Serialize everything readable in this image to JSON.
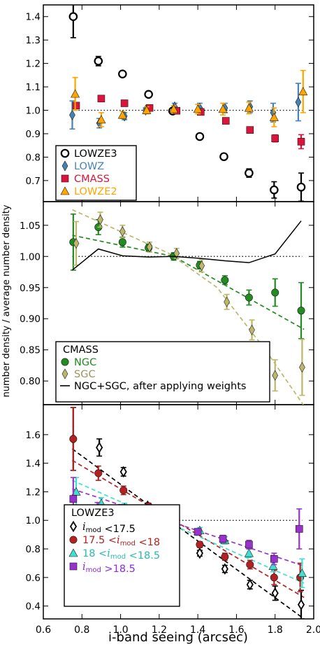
{
  "figure": {
    "ylabel": "number density / average number density",
    "xlabel": "i-band seeing (arcsec)"
  },
  "chart_data": [
    {
      "type": "scatter",
      "panel": "top",
      "xlim": [
        0.6,
        2.0
      ],
      "ylim": [
        0.61,
        1.45
      ],
      "yticks": [
        0.7,
        0.8,
        0.9,
        1.0,
        1.1,
        1.2,
        1.3,
        1.4
      ],
      "ytick_labels": [
        "0.7",
        "0.8",
        "0.9",
        "1.0",
        "1.1",
        "1.2",
        "1.3",
        "1.4"
      ],
      "reference_line": 1.0,
      "legend_position": "lower-left",
      "series": [
        {
          "name": "LOWZE3",
          "marker": "circle-open",
          "color": "#000000",
          "legend_color": "#000000",
          "points": [
            [
              0.755,
              1.4,
              0.09
            ],
            [
              0.885,
              1.21,
              0.02
            ],
            [
              1.01,
              1.155,
              0.01
            ],
            [
              1.145,
              1.068,
              0.01
            ],
            [
              1.27,
              0.997,
              0.01
            ],
            [
              1.41,
              0.888,
              0.01
            ],
            [
              1.535,
              0.802,
              0.012
            ],
            [
              1.665,
              0.732,
              0.018
            ],
            [
              1.795,
              0.66,
              0.035
            ],
            [
              1.935,
              0.672,
              0.06
            ]
          ]
        },
        {
          "name": "LOWZ",
          "marker": "diamond",
          "color": "#4682b4",
          "legend_color": "#4682b4",
          "points": [
            [
              0.75,
              0.98,
              0.06
            ],
            [
              0.89,
              0.945,
              0.02
            ],
            [
              1.02,
              0.975,
              0.015
            ],
            [
              1.13,
              1.0,
              0.01
            ],
            [
              1.28,
              1.015,
              0.015
            ],
            [
              1.41,
              1.01,
              0.02
            ],
            [
              1.54,
              1.01,
              0.02
            ],
            [
              1.67,
              1.015,
              0.025
            ],
            [
              1.79,
              0.99,
              0.04
            ],
            [
              1.92,
              1.035,
              0.08
            ]
          ]
        },
        {
          "name": "CMASS",
          "marker": "square",
          "color": "#dc143c",
          "legend_color": "#dc143c",
          "points": [
            [
              0.77,
              1.02,
              0.01
            ],
            [
              0.9,
              1.05,
              0.01
            ],
            [
              1.02,
              1.03,
              0.01
            ],
            [
              1.15,
              1.01,
              0.01
            ],
            [
              1.29,
              0.998,
              0.01
            ],
            [
              1.415,
              0.993,
              0.01
            ],
            [
              1.545,
              0.955,
              0.01
            ],
            [
              1.67,
              0.916,
              0.01
            ],
            [
              1.8,
              0.88,
              0.015
            ],
            [
              1.935,
              0.866,
              0.03
            ]
          ]
        },
        {
          "name": "LOWZE2",
          "marker": "triangle",
          "color": "#ffa500",
          "legend_color": "#ffa500",
          "points": [
            [
              0.765,
              1.07,
              0.07
            ],
            [
              0.9,
              0.96,
              0.03
            ],
            [
              1.01,
              0.98,
              0.015
            ],
            [
              1.135,
              1.0,
              0.015
            ],
            [
              1.275,
              1.005,
              0.015
            ],
            [
              1.4,
              1.005,
              0.02
            ],
            [
              1.53,
              1.005,
              0.025
            ],
            [
              1.665,
              1.01,
              0.025
            ],
            [
              1.795,
              0.97,
              0.04
            ],
            [
              1.945,
              1.08,
              0.09
            ]
          ]
        }
      ]
    },
    {
      "type": "scatter",
      "panel": "middle",
      "xlim": [
        0.6,
        2.0
      ],
      "ylim": [
        0.762,
        1.088
      ],
      "yticks": [
        0.8,
        0.85,
        0.9,
        0.95,
        1.0,
        1.05
      ],
      "ytick_labels": [
        "0.80",
        "0.85",
        "0.90",
        "0.95",
        "1.00",
        "1.05"
      ],
      "reference_line": 1.0,
      "legend_title": "CMASS",
      "legend_position": "lower-left",
      "series": [
        {
          "name": "NGC",
          "marker": "circle",
          "color": "#228b22",
          "legend_color": "#228b22",
          "points": [
            [
              0.755,
              1.023,
              0.045
            ],
            [
              0.885,
              1.047,
              0.012
            ],
            [
              1.01,
              1.023,
              0.008
            ],
            [
              1.145,
              1.014,
              0.006
            ],
            [
              1.275,
              1.0,
              0.006
            ],
            [
              1.41,
              0.986,
              0.006
            ],
            [
              1.54,
              0.962,
              0.007
            ],
            [
              1.665,
              0.934,
              0.012
            ],
            [
              1.8,
              0.942,
              0.022
            ],
            [
              1.935,
              0.913,
              0.045
            ]
          ],
          "fit": [
            [
              0.75,
              1.034
            ],
            [
              1.275,
              1.0
            ],
            [
              1.95,
              0.883
            ]
          ]
        },
        {
          "name": "SGC",
          "marker": "diamond",
          "color": "#bdb76b",
          "legend_color": "#9b955a",
          "points": [
            [
              0.77,
              1.021,
              0.035
            ],
            [
              0.895,
              1.059,
              0.012
            ],
            [
              1.01,
              1.04,
              0.01
            ],
            [
              1.15,
              1.015,
              0.008
            ],
            [
              1.29,
              1.005,
              0.008
            ],
            [
              1.42,
              0.985,
              0.01
            ],
            [
              1.55,
              0.927,
              0.012
            ],
            [
              1.68,
              0.882,
              0.016
            ],
            [
              1.8,
              0.809,
              0.025
            ],
            [
              1.94,
              0.822,
              0.045
            ]
          ],
          "fit": [
            [
              0.75,
              1.075
            ],
            [
              1.25,
              1.005
            ],
            [
              1.5,
              0.95
            ],
            [
              1.75,
              0.85
            ],
            [
              1.95,
              0.76
            ]
          ]
        },
        {
          "name": "NGC+SGC, after applying weights",
          "marker": "line",
          "color": "#000000",
          "legend_color": "#000000",
          "points": [
            [
              0.75,
              0.978
            ],
            [
              0.885,
              1.012
            ],
            [
              1.01,
              1.001
            ],
            [
              1.145,
              0.999
            ],
            [
              1.275,
              1.0
            ],
            [
              1.41,
              0.997
            ],
            [
              1.54,
              0.993
            ],
            [
              1.665,
              0.99
            ],
            [
              1.8,
              1.004
            ],
            [
              1.935,
              1.057
            ]
          ]
        }
      ]
    },
    {
      "type": "scatter",
      "panel": "bottom",
      "xlim": [
        0.6,
        2.0
      ],
      "ylim": [
        0.31,
        1.81
      ],
      "yticks": [
        0.4,
        0.6,
        0.8,
        1.0,
        1.2,
        1.4,
        1.6
      ],
      "ytick_labels": [
        "0.4",
        "0.6",
        "0.8",
        "1.0",
        "1.2",
        "1.4",
        "1.6"
      ],
      "xticks": [
        0.6,
        0.8,
        1.0,
        1.2,
        1.4,
        1.6,
        1.8,
        2.0
      ],
      "xtick_labels": [
        "0.6",
        "0.8",
        "1.0",
        "1.2",
        "1.4",
        "1.6",
        "1.8",
        "2.0"
      ],
      "reference_line": 1.0,
      "legend_title": "LOWZE3",
      "legend_position": "lower-left",
      "series": [
        {
          "name": "imod<17.5",
          "marker": "diamond-open",
          "color": "#000000",
          "legend_color": "#000000",
          "label_parts": [
            "i",
            "mod",
            " <17.5"
          ],
          "points": [
            [
              0.755,
              1.57,
              0.22
            ],
            [
              0.89,
              1.51,
              0.06
            ],
            [
              1.015,
              1.34,
              0.03
            ],
            [
              1.14,
              1.1,
              0.02
            ],
            [
              1.29,
              0.94,
              0.02
            ],
            [
              1.41,
              0.77,
              0.02
            ],
            [
              1.54,
              0.66,
              0.025
            ],
            [
              1.67,
              0.55,
              0.03
            ],
            [
              1.8,
              0.49,
              0.05
            ],
            [
              1.935,
              0.41,
              0.1
            ]
          ],
          "fit": [
            [
              0.75,
              1.5
            ],
            [
              1.95,
              0.31
            ]
          ]
        },
        {
          "name": "17.5<imod<18",
          "marker": "circle",
          "color": "#b22222",
          "legend_color": "#b22222",
          "label_parts": [
            "17.5 <",
            "i",
            "mod",
            " <18"
          ],
          "points": [
            [
              0.755,
              1.57,
              0.22
            ],
            [
              0.885,
              1.33,
              0.05
            ],
            [
              1.015,
              1.21,
              0.03
            ],
            [
              1.145,
              1.1,
              0.02
            ],
            [
              1.28,
              0.97,
              0.02
            ],
            [
              1.41,
              0.83,
              0.02
            ],
            [
              1.54,
              0.745,
              0.025
            ],
            [
              1.67,
              0.69,
              0.03
            ],
            [
              1.795,
              0.6,
              0.05
            ],
            [
              1.93,
              0.6,
              0.1
            ]
          ],
          "fit": [
            [
              0.75,
              1.42
            ],
            [
              1.95,
              0.46
            ]
          ]
        },
        {
          "name": "18<imod<18.5",
          "marker": "triangle",
          "color": "#40e0d0",
          "legend_color": "#2bbab0",
          "label_parts": [
            "18 <",
            "i",
            "mod",
            " <18.5"
          ],
          "points": [
            [
              0.77,
              1.2,
              0.1
            ],
            [
              0.9,
              1.12,
              0.04
            ],
            [
              1.02,
              1.09,
              0.03
            ],
            [
              1.15,
              1.07,
              0.02
            ],
            [
              1.28,
              1.02,
              0.02
            ],
            [
              1.41,
              0.93,
              0.02
            ],
            [
              1.54,
              0.86,
              0.025
            ],
            [
              1.665,
              0.77,
              0.03
            ],
            [
              1.79,
              0.68,
              0.04
            ],
            [
              1.94,
              0.63,
              0.1
            ]
          ],
          "fit": [
            [
              0.75,
              1.28
            ],
            [
              1.95,
              0.56
            ]
          ]
        },
        {
          "name": "imod>18.5",
          "marker": "square",
          "color": "#9932cc",
          "legend_color": "#8a2be2",
          "label_parts": [
            "i",
            "mod",
            " >18.5"
          ],
          "points": [
            [
              0.755,
              1.15,
              0.15
            ],
            [
              0.88,
              1.085,
              0.04
            ],
            [
              1.0,
              1.08,
              0.03
            ],
            [
              1.14,
              1.045,
              0.02
            ],
            [
              1.28,
              1.03,
              0.02
            ],
            [
              1.4,
              0.92,
              0.02
            ],
            [
              1.53,
              0.87,
              0.025
            ],
            [
              1.665,
              0.83,
              0.03
            ],
            [
              1.795,
              0.73,
              0.04
            ],
            [
              1.925,
              0.94,
              0.14
            ]
          ],
          "fit": [
            [
              0.75,
              1.22
            ],
            [
              1.95,
              0.68
            ]
          ]
        }
      ]
    }
  ]
}
